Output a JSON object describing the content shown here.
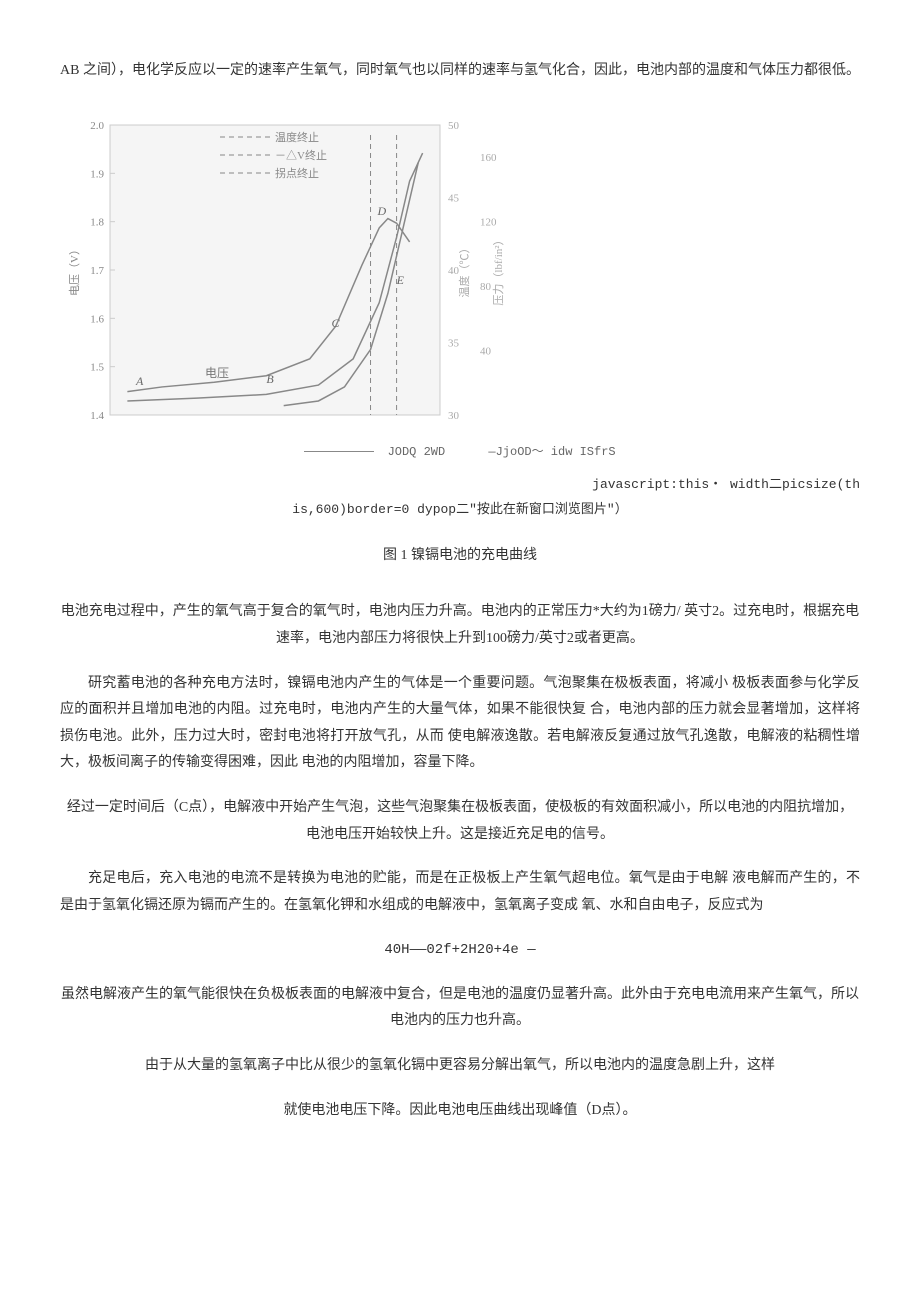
{
  "top_para": "AB 之间），电化学反应以一定的速率产生氧气，同时氧气也以同样的速率与氢气化合，因此，电池内部的温度和气体压力都很低。",
  "chart": {
    "type": "line",
    "background_color": "#f5f5f5",
    "grid_color": "#cccccc",
    "curve_color": "#888888",
    "curve_width": 1.5,
    "dash_pattern": "5,4",
    "y_left_ticks": [
      "1.4",
      "1.5",
      "1.6",
      "1.7",
      "1.8",
      "1.9",
      "2.0"
    ],
    "y_left_label": "电压（V）",
    "y_right1_ticks": [
      "30",
      "35",
      "40",
      "45",
      "50"
    ],
    "y_right1_label": "温度（℃）",
    "y_right2_ticks": [
      "40",
      "80",
      "120",
      "160"
    ],
    "y_right2_label": "压力（lbf/in²）",
    "legend_items": [
      "温度终止",
      "－△V终止",
      "拐点终止"
    ],
    "point_labels": [
      "A",
      "B",
      "C",
      "D",
      "E"
    ],
    "voltage_label": "电压",
    "voltage_curve": [
      [
        20,
        285
      ],
      [
        60,
        280
      ],
      [
        120,
        275
      ],
      [
        180,
        268
      ],
      [
        230,
        250
      ],
      [
        260,
        215
      ],
      [
        290,
        150
      ],
      [
        310,
        110
      ],
      [
        320,
        100
      ],
      [
        330,
        105
      ],
      [
        345,
        125
      ]
    ],
    "temp_curve": [
      [
        20,
        295
      ],
      [
        100,
        292
      ],
      [
        180,
        288
      ],
      [
        240,
        278
      ],
      [
        280,
        250
      ],
      [
        310,
        190
      ],
      [
        330,
        120
      ],
      [
        345,
        60
      ],
      [
        360,
        30
      ]
    ],
    "press_curve": [
      [
        200,
        300
      ],
      [
        240,
        295
      ],
      [
        270,
        280
      ],
      [
        300,
        240
      ],
      [
        320,
        180
      ],
      [
        340,
        100
      ],
      [
        355,
        40
      ]
    ],
    "label_pos": {
      "A": [
        30,
        278
      ],
      "B": [
        180,
        276
      ],
      "C": [
        255,
        216
      ],
      "D": [
        308,
        96
      ],
      "E": [
        330,
        170
      ]
    },
    "dash_lines_x": [
      300,
      330
    ]
  },
  "caption_under_chart": {
    "left": "JODQ 2WD",
    "right": "—JjoOD～ idw ISfrS"
  },
  "js_line1": "javascript:this・ width二picsize(th",
  "js_line2": "is,600)border=0 dypop二\"按此在新窗口浏览图片\"）",
  "fig_title": "图 1 镍镉电池的充电曲线",
  "para2": "电池充电过程中，产生的氧气高于复合的氧气时，电池内压力升高。电池内的正常压力*大约为1磅力/ 英寸2。过充电时，根据充电速率，电池内部压力将很快上升到100磅力/英寸2或者更高。",
  "para3": "研究蓄电池的各种充电方法时，镍镉电池内产生的气体是一个重要问题。气泡聚集在极板表面，将减小 极板表面参与化学反应的面积并且增加电池的内阻。过充电时，电池内产生的大量气体，如果不能很快复 合，电池内部的压力就会显著增加，这样将损伤电池。此外，压力过大时，密封电池将打开放气孔，从而 使电解液逸散。若电解液反复通过放气孔逸散，电解液的粘稠性增大，极板间离子的传输变得困难，因此 电池的内阻增加，容量下降。",
  "para4": "经过一定时间后（C点），电解液中开始产生气泡，这些气泡聚集在极板表面，使极板的有效面积减小，所以电池的内阻抗增加，电池电压开始较快上升。这是接近充足电的信号。",
  "para5": "充足电后，充入电池的电流不是转换为电池的贮能，而是在正极板上产生氧气超电位。氧气是由于电解 液电解而产生的，不是由于氢氧化镉还原为镉而产生的。在氢氧化钾和水组成的电解液中，氢氧离子变成 氧、水和自由电子，反应式为",
  "formula": "40H――02f+2H20+4e —",
  "para6": "虽然电解液产生的氧气能很快在负极板表面的电解液中复合，但是电池的温度仍显著升高。此外由于充电电流用来产生氧气，所以电池内的压力也升高。",
  "para7": "由于从大量的氢氧离子中比从很少的氢氧化镉中更容易分解出氧气，所以电池内的温度急剧上升，这样",
  "para8": "就使电池电压下降。因此电池电压曲线出现峰值（D点）。"
}
